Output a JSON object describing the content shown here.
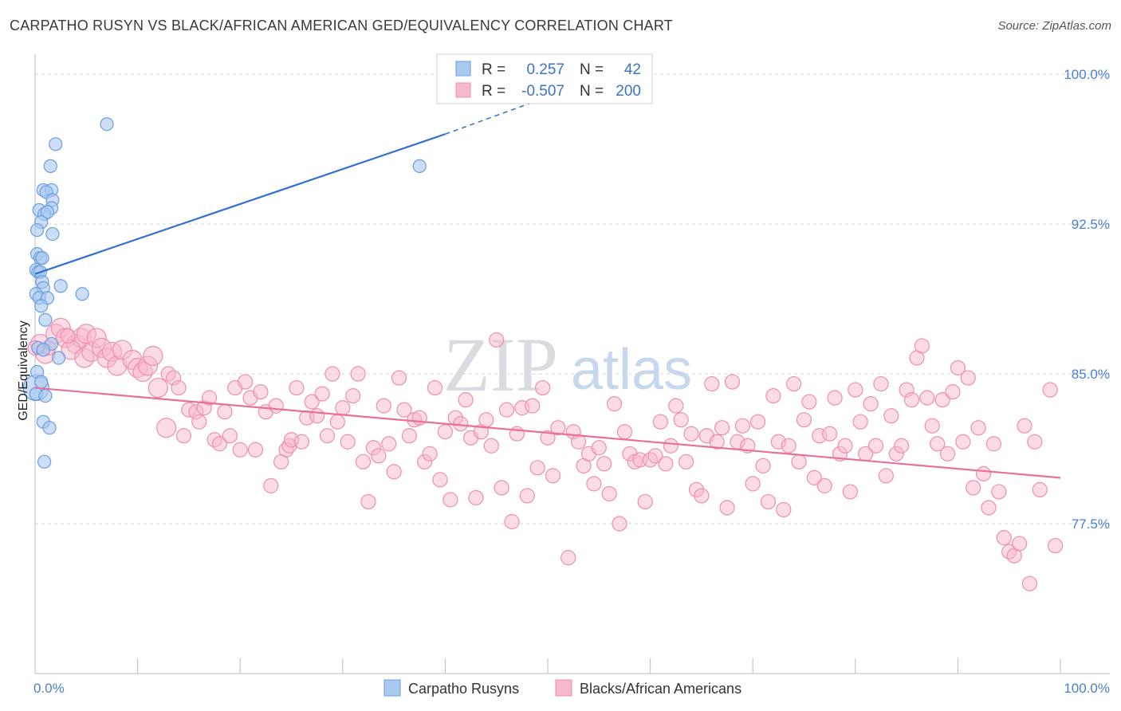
{
  "title": "CARPATHO RUSYN VS BLACK/AFRICAN AMERICAN GED/EQUIVALENCY CORRELATION CHART",
  "source": "Source: ZipAtlas.com",
  "watermark": {
    "zip": "ZIP",
    "atlas": "atlas"
  },
  "legend": {
    "rows": [
      {
        "r_label": "R =",
        "r_value": "0.257",
        "n_label": "N =",
        "n_value": "42"
      },
      {
        "r_label": "R =",
        "r_value": "-0.507",
        "n_label": "N =",
        "n_value": "200"
      }
    ]
  },
  "bottom_legend": [
    "Carpatho Rusyns",
    "Blacks/African Americans"
  ],
  "colors": {
    "blue_fill": "#a9c8f0",
    "blue_stroke": "#6b9de0",
    "blue_line": "#2f6fd0",
    "pink_fill": "#f7b8cb",
    "pink_stroke": "#ee8fae",
    "pink_line": "#e8709a",
    "grid": "#d6d6d6",
    "axis_label": "#4a7fd0"
  },
  "chart_data": {
    "type": "scatter",
    "title": "CARPATHO RUSYN VS BLACK/AFRICAN AMERICAN GED/EQUIVALENCY CORRELATION CHART",
    "xlabel": "",
    "ylabel": "GED/Equivalency",
    "xlim": [
      0,
      100
    ],
    "ylim": [
      70.0,
      101.0
    ],
    "y_ticks": [
      77.5,
      85.0,
      92.5,
      100.0
    ],
    "y_tick_labels": [
      "77.5%",
      "85.0%",
      "92.5%",
      "100.0%"
    ],
    "x_tick_labels": [
      "0.0%",
      "100.0%"
    ],
    "grid": true,
    "legend_position": "top-center",
    "series": [
      {
        "name": "Carpatho Rusyns",
        "r": 0.257,
        "n": 42,
        "trend": {
          "x": [
            0,
            40,
            55
          ],
          "y": [
            90.0,
            97.0,
            99.8
          ],
          "dashed_from_x": 40
        },
        "points": [
          [
            7,
            97.5
          ],
          [
            2,
            96.5
          ],
          [
            1.5,
            95.4
          ],
          [
            37.5,
            95.4
          ],
          [
            0.8,
            94.2
          ],
          [
            1.6,
            94.2
          ],
          [
            1.1,
            94.1
          ],
          [
            1.7,
            93.7
          ],
          [
            1.6,
            93.3
          ],
          [
            0.4,
            93.2
          ],
          [
            0.9,
            93.0
          ],
          [
            1.2,
            93.1
          ],
          [
            0.6,
            92.6
          ],
          [
            0.2,
            92.2
          ],
          [
            1.7,
            92.0
          ],
          [
            0.2,
            91.0
          ],
          [
            0.5,
            90.8
          ],
          [
            0.7,
            90.8
          ],
          [
            0.1,
            90.2
          ],
          [
            0.3,
            90.1
          ],
          [
            0.5,
            90.1
          ],
          [
            0.7,
            89.6
          ],
          [
            2.5,
            89.4
          ],
          [
            0.8,
            89.3
          ],
          [
            4.6,
            89.0
          ],
          [
            0.1,
            89.0
          ],
          [
            0.4,
            88.8
          ],
          [
            1.2,
            88.8
          ],
          [
            0.6,
            88.4
          ],
          [
            1.0,
            87.7
          ],
          [
            1.6,
            86.5
          ],
          [
            0.3,
            86.3
          ],
          [
            0.8,
            86.2
          ],
          [
            2.3,
            85.8
          ],
          [
            0.1,
            84.3
          ],
          [
            0.1,
            84.0
          ],
          [
            1.0,
            83.9
          ],
          [
            0.8,
            82.6
          ],
          [
            1.4,
            82.3
          ],
          [
            0.9,
            80.6
          ],
          [
            0.2,
            85.1
          ],
          [
            0.6,
            84.6
          ]
        ]
      },
      {
        "name": "Blacks/African Americans",
        "r": -0.507,
        "n": 200,
        "trend": {
          "x": [
            0,
            100
          ],
          "y": [
            84.3,
            79.8
          ]
        },
        "points": [
          [
            0.5,
            86.5
          ],
          [
            1.0,
            86.0
          ],
          [
            2.0,
            87.0
          ],
          [
            2.5,
            87.3
          ],
          [
            3.0,
            86.8
          ],
          [
            4.0,
            86.5
          ],
          [
            4.5,
            86.8
          ],
          [
            5.0,
            87.0
          ],
          [
            3.5,
            86.2
          ],
          [
            4.8,
            85.8
          ],
          [
            5.5,
            86.1
          ],
          [
            6.0,
            86.8
          ],
          [
            6.5,
            86.3
          ],
          [
            7.0,
            85.8
          ],
          [
            7.5,
            86.1
          ],
          [
            8.0,
            85.4
          ],
          [
            8.5,
            86.2
          ],
          [
            9.5,
            85.7
          ],
          [
            10.0,
            85.3
          ],
          [
            10.5,
            85.1
          ],
          [
            11.0,
            85.4
          ],
          [
            11.5,
            85.9
          ],
          [
            12.0,
            84.3
          ],
          [
            12.8,
            82.3
          ],
          [
            13.0,
            85.0
          ],
          [
            13.5,
            84.8
          ],
          [
            14.0,
            84.3
          ],
          [
            14.5,
            81.9
          ],
          [
            15.0,
            83.2
          ],
          [
            15.7,
            83.1
          ],
          [
            16.0,
            82.6
          ],
          [
            16.5,
            83.3
          ],
          [
            17.0,
            83.8
          ],
          [
            17.5,
            81.7
          ],
          [
            18.0,
            81.5
          ],
          [
            18.5,
            83.1
          ],
          [
            19.0,
            81.9
          ],
          [
            19.5,
            84.3
          ],
          [
            20.0,
            81.2
          ],
          [
            20.5,
            84.6
          ],
          [
            21.0,
            83.8
          ],
          [
            21.5,
            81.2
          ],
          [
            22.0,
            84.1
          ],
          [
            22.5,
            83.1
          ],
          [
            23.0,
            79.4
          ],
          [
            23.5,
            83.4
          ],
          [
            24.0,
            80.6
          ],
          [
            24.5,
            81.2
          ],
          [
            24.8,
            81.4
          ],
          [
            25.0,
            81.7
          ],
          [
            25.5,
            84.3
          ],
          [
            26.0,
            81.6
          ],
          [
            26.5,
            82.8
          ],
          [
            27.0,
            83.6
          ],
          [
            27.5,
            82.9
          ],
          [
            28.0,
            84.0
          ],
          [
            28.5,
            81.9
          ],
          [
            29.0,
            85.0
          ],
          [
            29.5,
            82.6
          ],
          [
            30.0,
            83.3
          ],
          [
            30.5,
            81.6
          ],
          [
            31.0,
            83.9
          ],
          [
            31.5,
            85.0
          ],
          [
            32.0,
            80.6
          ],
          [
            32.5,
            78.6
          ],
          [
            33.0,
            81.3
          ],
          [
            33.5,
            80.9
          ],
          [
            34.0,
            83.4
          ],
          [
            34.5,
            81.5
          ],
          [
            35.0,
            80.1
          ],
          [
            35.5,
            84.8
          ],
          [
            36.0,
            83.2
          ],
          [
            36.5,
            81.9
          ],
          [
            37.0,
            82.7
          ],
          [
            37.5,
            82.8
          ],
          [
            38.0,
            80.6
          ],
          [
            38.5,
            81.0
          ],
          [
            39.0,
            84.3
          ],
          [
            39.5,
            79.7
          ],
          [
            40.0,
            82.1
          ],
          [
            40.5,
            78.7
          ],
          [
            41.0,
            82.8
          ],
          [
            41.5,
            82.5
          ],
          [
            42.0,
            83.7
          ],
          [
            42.5,
            81.8
          ],
          [
            43.0,
            78.8
          ],
          [
            43.5,
            82.1
          ],
          [
            44.0,
            82.7
          ],
          [
            44.5,
            81.4
          ],
          [
            45.0,
            86.7
          ],
          [
            45.5,
            79.3
          ],
          [
            46.0,
            83.2
          ],
          [
            46.5,
            77.6
          ],
          [
            47.0,
            82.0
          ],
          [
            47.5,
            83.3
          ],
          [
            48.0,
            78.9
          ],
          [
            48.5,
            83.4
          ],
          [
            49.0,
            80.3
          ],
          [
            49.5,
            84.3
          ],
          [
            50.0,
            81.8
          ],
          [
            50.5,
            79.9
          ],
          [
            51.0,
            82.3
          ],
          [
            52.0,
            75.8
          ],
          [
            52.5,
            82.1
          ],
          [
            53.0,
            81.6
          ],
          [
            53.5,
            80.4
          ],
          [
            54.0,
            81.0
          ],
          [
            54.5,
            79.5
          ],
          [
            55.0,
            81.3
          ],
          [
            55.5,
            80.5
          ],
          [
            56.0,
            79.0
          ],
          [
            56.5,
            83.5
          ],
          [
            57.0,
            77.5
          ],
          [
            57.5,
            82.1
          ],
          [
            58.0,
            81.0
          ],
          [
            58.5,
            80.6
          ],
          [
            59.0,
            80.7
          ],
          [
            59.5,
            78.6
          ],
          [
            60.0,
            80.7
          ],
          [
            60.5,
            80.9
          ],
          [
            61.0,
            82.6
          ],
          [
            61.5,
            80.5
          ],
          [
            62.0,
            81.4
          ],
          [
            62.5,
            83.4
          ],
          [
            63.0,
            82.7
          ],
          [
            63.5,
            80.6
          ],
          [
            64.0,
            82.0
          ],
          [
            64.5,
            79.2
          ],
          [
            65.0,
            78.9
          ],
          [
            65.5,
            81.9
          ],
          [
            66.0,
            84.5
          ],
          [
            66.5,
            81.6
          ],
          [
            67.0,
            82.3
          ],
          [
            67.5,
            78.3
          ],
          [
            68.0,
            84.6
          ],
          [
            68.5,
            81.6
          ],
          [
            69.0,
            82.4
          ],
          [
            69.5,
            81.4
          ],
          [
            70.0,
            79.5
          ],
          [
            70.5,
            82.6
          ],
          [
            71.0,
            80.4
          ],
          [
            71.5,
            78.6
          ],
          [
            72.0,
            83.9
          ],
          [
            72.5,
            81.6
          ],
          [
            73.0,
            78.2
          ],
          [
            73.5,
            81.4
          ],
          [
            74.0,
            84.5
          ],
          [
            74.5,
            80.6
          ],
          [
            75.0,
            82.7
          ],
          [
            75.5,
            83.6
          ],
          [
            76.0,
            79.8
          ],
          [
            76.5,
            81.9
          ],
          [
            77.0,
            79.4
          ],
          [
            77.5,
            82.0
          ],
          [
            78.0,
            83.8
          ],
          [
            78.5,
            81.0
          ],
          [
            79.0,
            81.4
          ],
          [
            79.5,
            79.1
          ],
          [
            80.0,
            84.2
          ],
          [
            80.5,
            82.6
          ],
          [
            81.0,
            81.0
          ],
          [
            81.5,
            83.5
          ],
          [
            82.0,
            81.4
          ],
          [
            82.5,
            84.5
          ],
          [
            83.0,
            79.9
          ],
          [
            83.5,
            82.9
          ],
          [
            84.0,
            81.0
          ],
          [
            84.5,
            81.4
          ],
          [
            85.0,
            84.2
          ],
          [
            85.5,
            83.7
          ],
          [
            86.0,
            85.8
          ],
          [
            86.5,
            86.4
          ],
          [
            87.0,
            83.8
          ],
          [
            87.5,
            82.4
          ],
          [
            88.0,
            81.5
          ],
          [
            88.5,
            83.7
          ],
          [
            89.0,
            81.0
          ],
          [
            89.5,
            84.1
          ],
          [
            90.0,
            85.3
          ],
          [
            90.5,
            81.6
          ],
          [
            91.0,
            84.8
          ],
          [
            91.5,
            79.3
          ],
          [
            92.0,
            82.3
          ],
          [
            92.5,
            80.0
          ],
          [
            93.0,
            78.3
          ],
          [
            93.5,
            81.5
          ],
          [
            94.0,
            79.1
          ],
          [
            94.5,
            76.8
          ],
          [
            95.0,
            76.1
          ],
          [
            95.5,
            75.9
          ],
          [
            96.0,
            76.5
          ],
          [
            96.5,
            82.4
          ],
          [
            97.0,
            74.5
          ],
          [
            97.5,
            81.6
          ],
          [
            98.0,
            79.2
          ],
          [
            99.0,
            84.2
          ],
          [
            99.5,
            76.4
          ],
          [
            3.2,
            86.9
          ],
          [
            1.3,
            86.3
          ],
          [
            0.0,
            86.3
          ]
        ]
      }
    ]
  }
}
